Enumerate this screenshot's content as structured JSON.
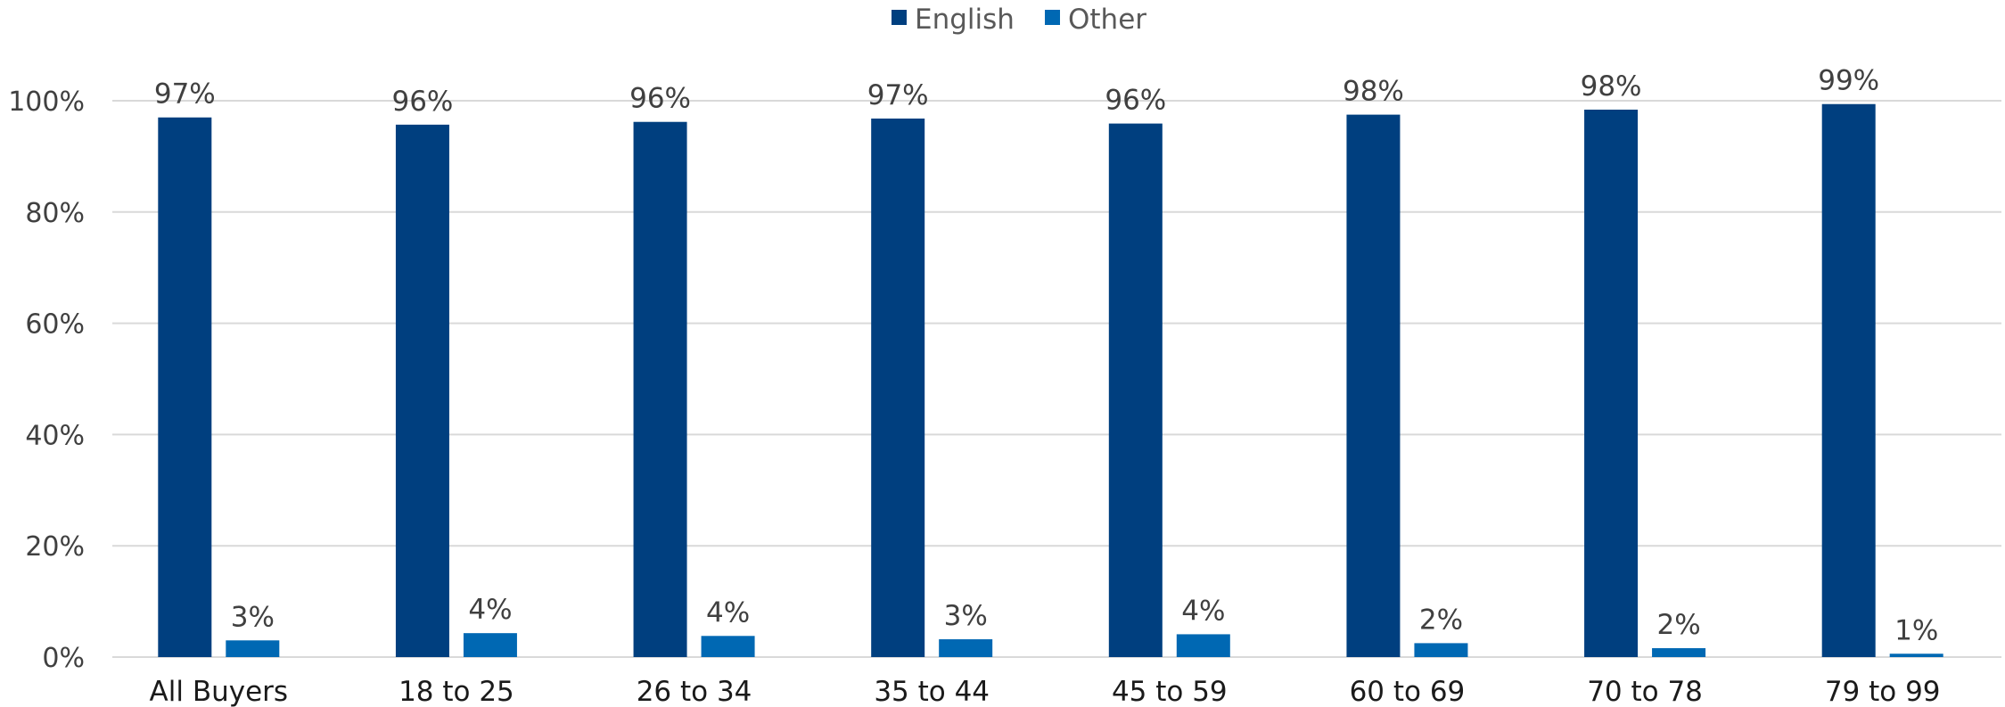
{
  "chart_data": {
    "type": "bar",
    "categories": [
      "All Buyers",
      "18 to 25",
      "26 to 34",
      "35 to 44",
      "45 to 59",
      "60 to 69",
      "70 to 78",
      "79 to 99"
    ],
    "series": [
      {
        "name": "English",
        "color": "#003f7f",
        "values": [
          97,
          95.7,
          96.2,
          96.8,
          95.9,
          97.5,
          98.4,
          99.4
        ],
        "labels": [
          "97%",
          "96%",
          "96%",
          "97%",
          "96%",
          "98%",
          "98%",
          "99%"
        ]
      },
      {
        "name": "Other",
        "color": "#0068b3",
        "values": [
          3,
          4.3,
          3.8,
          3.2,
          4.1,
          2.5,
          1.6,
          0.6
        ],
        "labels": [
          "3%",
          "4%",
          "4%",
          "3%",
          "4%",
          "2%",
          "2%",
          "1%"
        ]
      }
    ],
    "ylim": [
      0,
      100
    ],
    "yticks": [
      0,
      20,
      40,
      60,
      80,
      100
    ],
    "ytick_labels": [
      "0%",
      "20%",
      "40%",
      "60%",
      "80%",
      "100%"
    ],
    "grid": true,
    "legend": "top-center",
    "title": "",
    "xlabel": "",
    "ylabel": ""
  }
}
